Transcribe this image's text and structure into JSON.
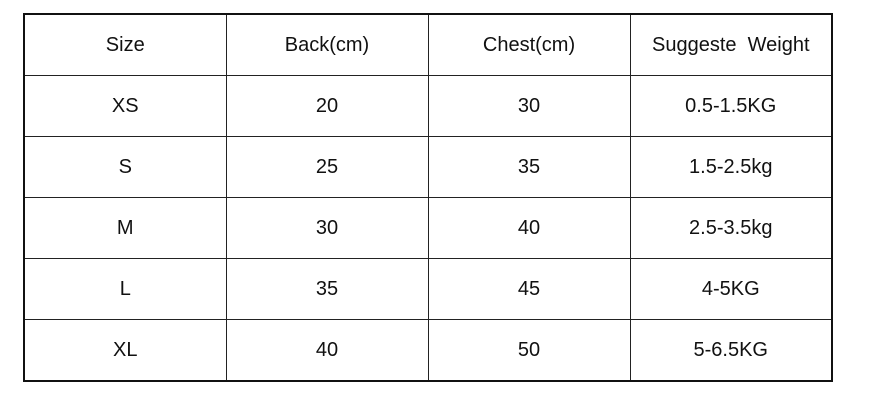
{
  "table": {
    "headers": [
      "Size",
      "Back(cm)",
      "Chest(cm)",
      "Suggeste  Weight"
    ],
    "rows": [
      [
        "XS",
        "20",
        "30",
        "0.5-1.5KG"
      ],
      [
        "S",
        "25",
        "35",
        "1.5-2.5kg"
      ],
      [
        "M",
        "30",
        "40",
        "2.5-3.5kg"
      ],
      [
        "L",
        "35",
        "45",
        "4-5KG"
      ],
      [
        "XL",
        "40",
        "50",
        "5-6.5KG"
      ]
    ]
  }
}
